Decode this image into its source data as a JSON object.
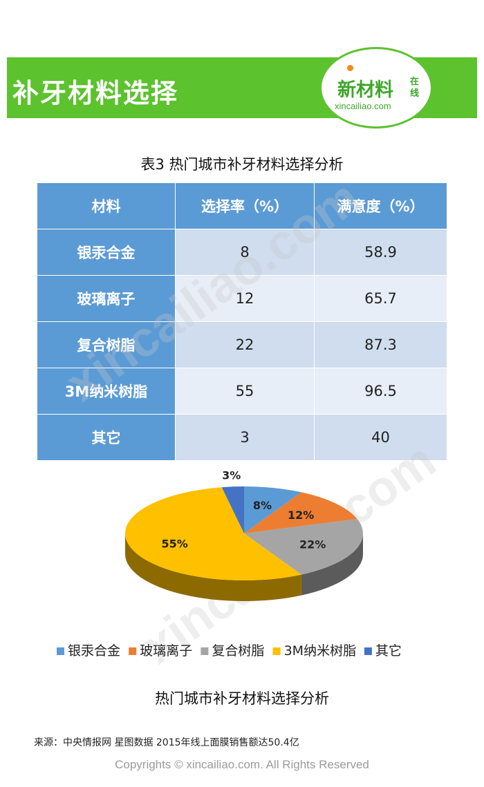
{
  "header": {
    "title": "补牙材料选择",
    "logo_main": "新材料",
    "logo_tag1": "在",
    "logo_tag2": "线",
    "logo_url": "xincailiao.com"
  },
  "table": {
    "title": "表3 热门城市补牙材料选择分析",
    "headers": [
      "材料",
      "选择率（%）",
      "满意度（%）"
    ],
    "rows": [
      [
        "银汞合金",
        "8",
        "58.9"
      ],
      [
        "玻璃离子",
        "12",
        "65.7"
      ],
      [
        "复合树脂",
        "22",
        "87.3"
      ],
      [
        "3M纳米树脂",
        "55",
        "96.5"
      ],
      [
        "其它",
        "3",
        "40"
      ]
    ]
  },
  "chart_data": {
    "type": "pie",
    "title": "热门城市补牙材料选择分析",
    "categories": [
      "银汞合金",
      "玻璃离子",
      "复合树脂",
      "3M纳米树脂",
      "其它"
    ],
    "values": [
      8,
      12,
      22,
      55,
      3
    ],
    "labels": [
      "8%",
      "12%",
      "22%",
      "55%",
      "3%"
    ],
    "colors": [
      "#5b9bd5",
      "#ed7d31",
      "#a5a5a5",
      "#ffc000",
      "#4472c4"
    ],
    "legend_position": "bottom",
    "style": "3d"
  },
  "watermark": "xincailiao.com",
  "footer": {
    "source": "来源：中央情报网 星图数据 2015年线上面膜销售额达50.4亿",
    "copyright": "Copyrights © xincailiao.com. All Rights Reserved"
  }
}
